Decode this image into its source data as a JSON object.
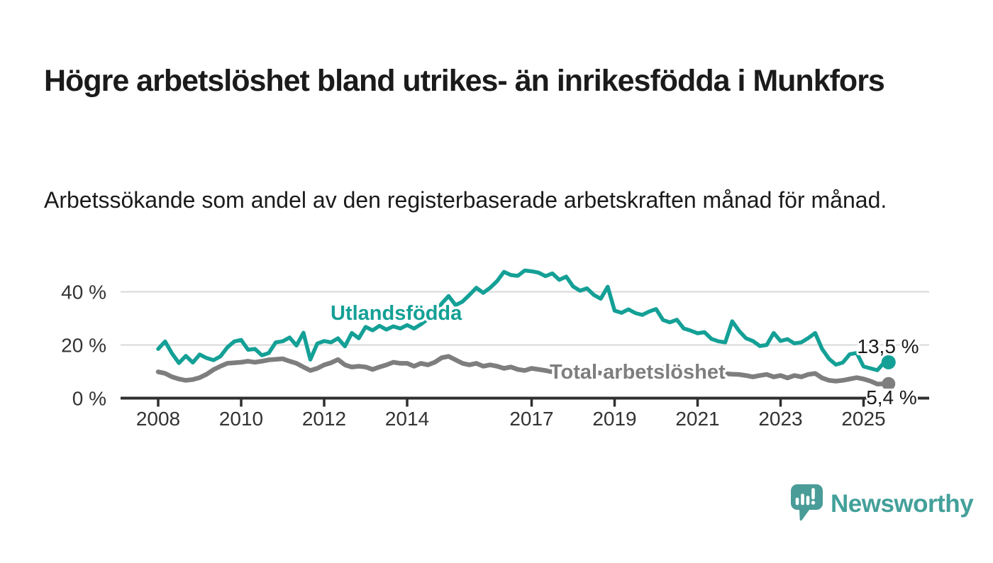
{
  "header": {
    "title": "Högre arbetslöshet bland utrikes- än inrikesfödda i Munkfors",
    "subtitle": "Arbetssökande som andel av den registerbaserade arbetskraften månad för månad."
  },
  "colors": {
    "utlandsfodda": "#14a096",
    "total": "#7e7e7e",
    "axis": "#2f2f2f",
    "grid": "#d8d8d8",
    "tick_label": "#333333",
    "value_label": "#1a1a1a",
    "logo": "#4a9c98",
    "wordmark": "#43a09a"
  },
  "chart_data": {
    "type": "line",
    "title": "",
    "xlabel": "",
    "ylabel": "",
    "x_unit": "decimal_year",
    "x_start": 2008.0,
    "x_step_years": 0.1666667,
    "xlim": [
      2007.1,
      2026.6
    ],
    "ylim": [
      0,
      50
    ],
    "grid": "horizontal",
    "legend_position": "inline-labels",
    "x_ticks": [
      2008,
      2010,
      2012,
      2014,
      2017,
      2019,
      2021,
      2023,
      2025
    ],
    "x_tick_labels": [
      "2008",
      "2010",
      "2012",
      "2014",
      "2017",
      "2019",
      "2021",
      "2023",
      "2025"
    ],
    "y_ticks": [
      0,
      20,
      40
    ],
    "y_tick_labels": [
      "0 %",
      "20 %",
      "40 %"
    ],
    "series": [
      {
        "name": "Utlandsfödda",
        "end_label": "13,5 %",
        "values": [
          18.5,
          21.3,
          16.8,
          13.2,
          15.9,
          13.4,
          16.4,
          15.1,
          14.3,
          15.7,
          19.1,
          21.3,
          21.9,
          18.2,
          18.5,
          16.1,
          17.0,
          21.0,
          21.4,
          22.8,
          19.8,
          24.6,
          14.5,
          20.5,
          21.5,
          21.0,
          22.5,
          19.5,
          24.5,
          22.5,
          26.8,
          25.5,
          27.2,
          25.8,
          27.0,
          26.2,
          27.5,
          26.2,
          27.8,
          29.8,
          32.2,
          35.6,
          38.4,
          35.0,
          36.3,
          38.8,
          41.5,
          39.6,
          41.5,
          44.0,
          47.5,
          46.3,
          46.0,
          48.0,
          47.7,
          47.2,
          45.9,
          46.9,
          44.5,
          45.7,
          42.0,
          40.4,
          41.3,
          38.8,
          37.4,
          41.9,
          32.9,
          32.1,
          33.4,
          32.0,
          31.3,
          32.6,
          33.5,
          29.4,
          28.5,
          29.5,
          26.2,
          25.4,
          24.4,
          24.8,
          22.3,
          21.4,
          21.0,
          28.9,
          25.3,
          22.5,
          21.5,
          19.6,
          20.0,
          24.5,
          21.5,
          22.2,
          20.6,
          21.0,
          22.6,
          24.5,
          18.5,
          14.8,
          12.6,
          13.4,
          16.5,
          17.0,
          11.9,
          11.2,
          10.5,
          13.5
        ]
      },
      {
        "name": "Total arbetslöshet",
        "end_label": "5,4 %",
        "values": [
          9.9,
          9.3,
          8.0,
          7.2,
          6.7,
          7.0,
          7.7,
          9.0,
          10.7,
          12.0,
          13.1,
          13.3,
          13.5,
          13.9,
          13.5,
          13.9,
          14.4,
          14.6,
          14.8,
          13.9,
          13.1,
          11.7,
          10.4,
          11.2,
          12.5,
          13.3,
          14.5,
          12.5,
          11.7,
          12.0,
          11.7,
          10.8,
          11.7,
          12.5,
          13.5,
          13.1,
          13.1,
          12.0,
          13.1,
          12.5,
          13.5,
          15.2,
          15.7,
          14.4,
          13.1,
          12.5,
          13.1,
          12.0,
          12.5,
          12.0,
          11.2,
          11.7,
          10.8,
          10.4,
          11.2,
          10.8,
          10.4,
          9.9,
          10.4,
          9.3,
          9.9,
          9.3,
          9.6,
          9.9,
          9.4,
          9.8,
          10.3,
          10.0,
          10.5,
          10.2,
          10.4,
          10.6,
          10.8,
          11.3,
          11.0,
          10.6,
          10.2,
          10.0,
          9.9,
          9.6,
          9.2,
          8.9,
          9.2,
          9.0,
          8.9,
          8.5,
          8.0,
          8.5,
          8.9,
          8.0,
          8.5,
          7.6,
          8.5,
          8.0,
          8.9,
          9.3,
          7.6,
          6.7,
          6.4,
          6.7,
          7.2,
          7.7,
          7.2,
          6.4,
          5.3,
          5.4
        ]
      }
    ]
  },
  "footer": {
    "brand": "Newsworthy"
  }
}
